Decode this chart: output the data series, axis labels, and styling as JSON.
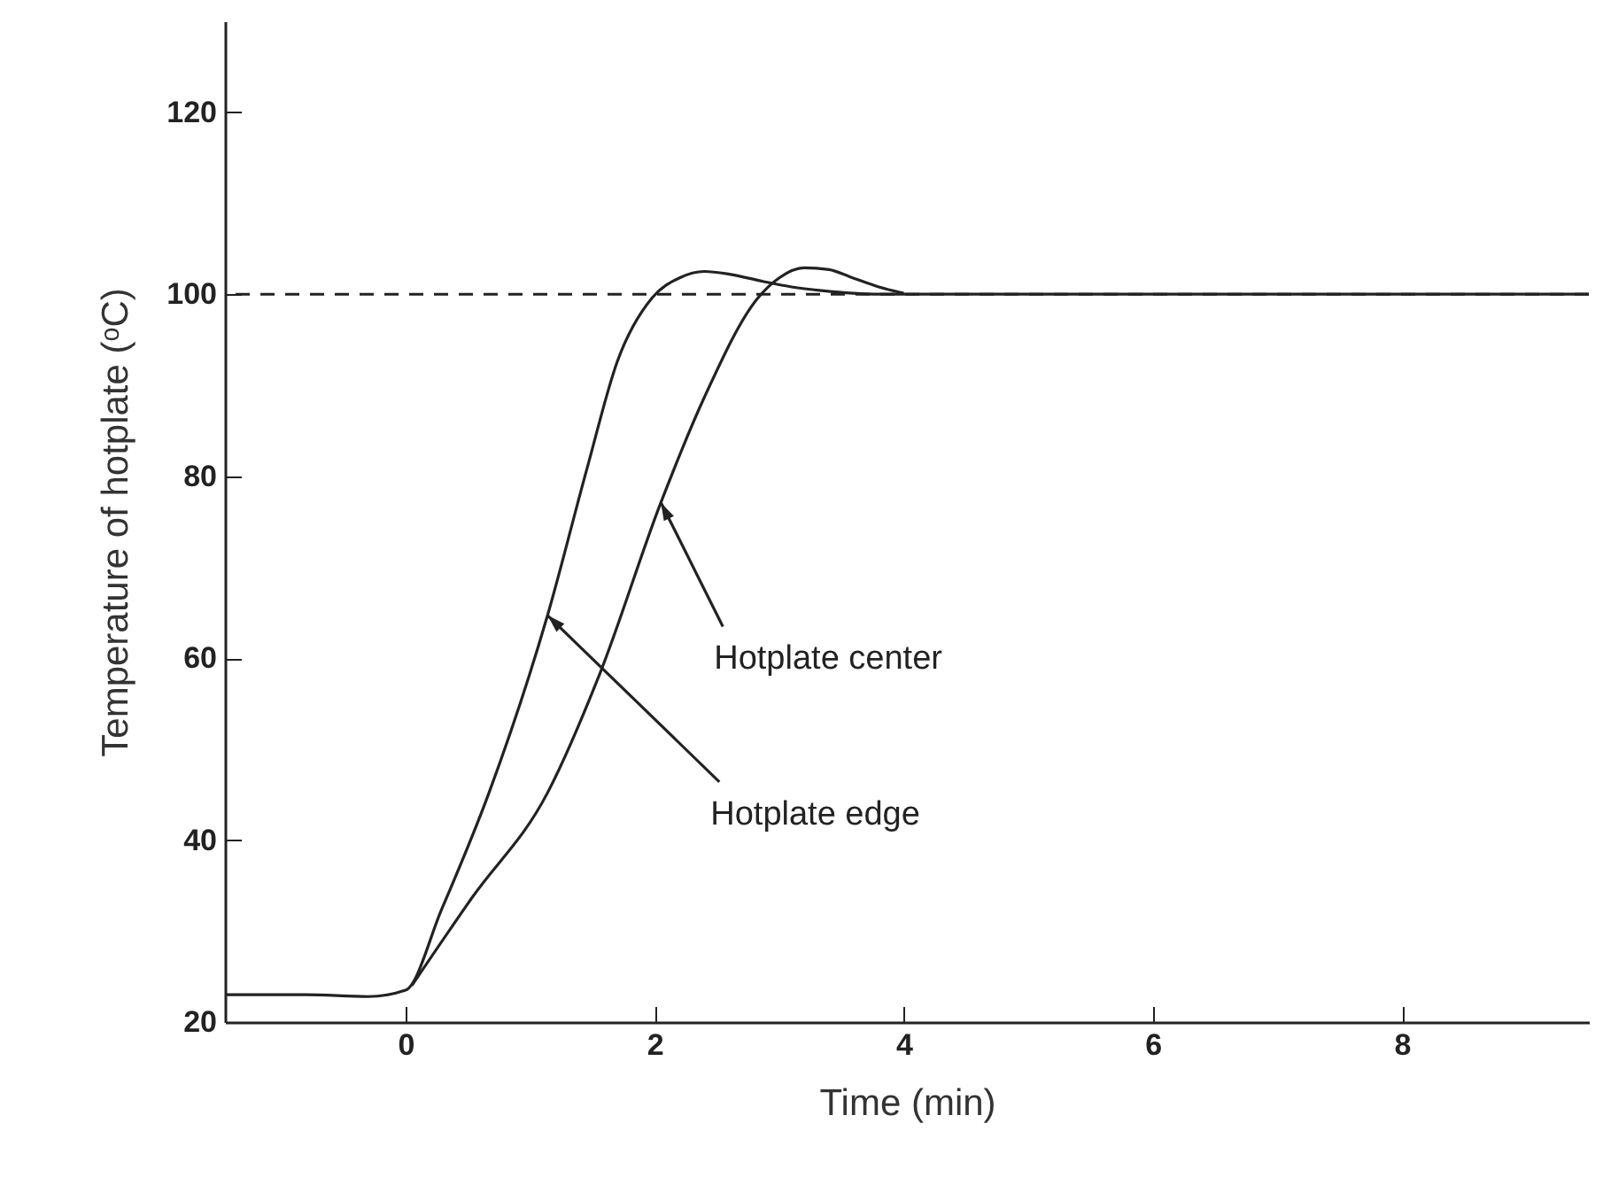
{
  "chart_data": {
    "type": "line",
    "xlabel": "Time (min)",
    "ylabel": "Temperature of hotplate (ᵒC)",
    "xlim": [
      -1.45,
      9.5
    ],
    "ylim": [
      20,
      130
    ],
    "xticks": [
      0,
      2,
      4,
      6,
      8
    ],
    "yticks": [
      20,
      40,
      60,
      80,
      100,
      120
    ],
    "grid": false,
    "line_style": "solid",
    "series": [
      {
        "color": "#222222",
        "x": [
          -1.45,
          -0.8,
          -0.3,
          0,
          0.29,
          0.67,
          1.14,
          1.46,
          1.7,
          1.98,
          2.2,
          2.4,
          2.6,
          2.87,
          3.1,
          3.34,
          3.8,
          4.5,
          6,
          8,
          9.5
        ],
        "values": [
          23,
          23,
          22.8,
          23.5,
          32.4,
          45.2,
          64.7,
          81,
          92.6,
          99.6,
          101.8,
          102.5,
          102.2,
          101.4,
          100.8,
          100.4,
          100,
          100,
          100,
          100,
          100
        ]
      },
      {
        "color": "#222222",
        "x": [
          0.05,
          0.53,
          1.14,
          1.56,
          2.05,
          2.4,
          2.83,
          3.0,
          3.2,
          3.4,
          3.57,
          3.8,
          4.0
        ],
        "values": [
          24,
          33.6,
          45.2,
          58.3,
          77.1,
          88.7,
          99.6,
          101.8,
          102.9,
          102.7,
          101.9,
          100.8,
          100.1
        ]
      }
    ],
    "ref_lines": [
      {
        "axis": "y",
        "value": 100,
        "color": "#222222",
        "line_style": "dashed"
      }
    ],
    "annotations": [
      {
        "text": "Hotplate center",
        "x": 2.05,
        "y": 77.1
      },
      {
        "text": "Hotplate edge",
        "x": 1.14,
        "y": 64.7
      }
    ]
  }
}
